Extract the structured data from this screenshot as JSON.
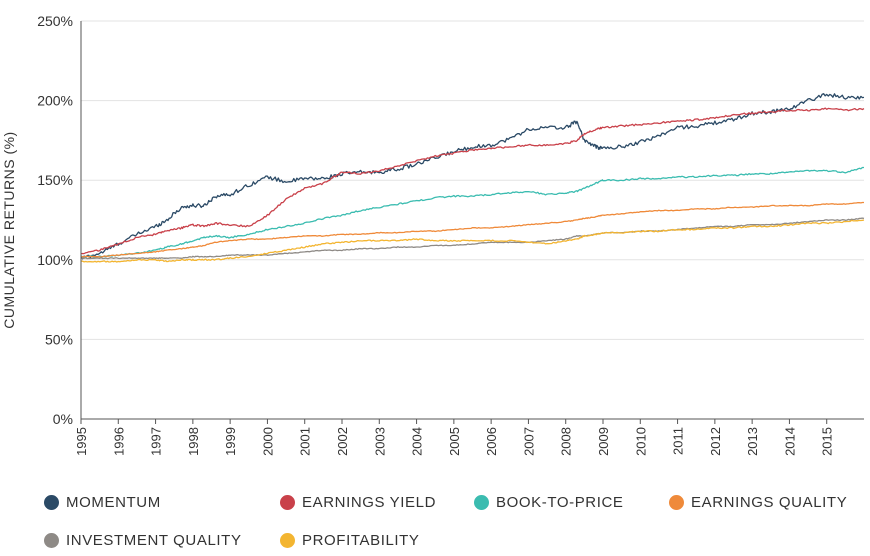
{
  "chart_data": {
    "type": "line",
    "title": "",
    "xlabel": "",
    "ylabel": "CUMULATIVE RETURNS (%)",
    "xlim": [
      1995,
      2016
    ],
    "ylim": [
      0,
      250
    ],
    "y_ticks": [
      0,
      50,
      100,
      150,
      200,
      250
    ],
    "y_tick_labels": [
      "0%",
      "50%",
      "100%",
      "150%",
      "200%",
      "250%"
    ],
    "x_ticks": [
      1995,
      1996,
      1997,
      1998,
      1999,
      2000,
      2001,
      2002,
      2003,
      2004,
      2005,
      2006,
      2007,
      2008,
      2009,
      2010,
      2011,
      2012,
      2013,
      2014,
      2015
    ],
    "x_tick_labels": [
      "1995",
      "1996",
      "1997",
      "1998",
      "1999",
      "2000",
      "2001",
      "2002",
      "2003",
      "2004",
      "2005",
      "2006",
      "2007",
      "2008",
      "2009",
      "2010",
      "2011",
      "2012",
      "2013",
      "2014",
      "2015"
    ],
    "x_tick_rotation": -90,
    "grid": "horizontal",
    "legend_position": "bottom",
    "x": [
      1995.0,
      1995.5,
      1996.0,
      1996.5,
      1997.0,
      1997.3,
      1997.7,
      1998.0,
      1998.3,
      1998.6,
      1999.0,
      1999.5,
      2000.0,
      2000.5,
      2001.0,
      2001.5,
      2002.0,
      2002.5,
      2003.0,
      2003.5,
      2004.0,
      2004.5,
      2005.0,
      2005.5,
      2006.0,
      2006.5,
      2007.0,
      2007.5,
      2008.0,
      2008.3,
      2008.5,
      2008.8,
      2009.0,
      2009.5,
      2010.0,
      2010.5,
      2011.0,
      2011.5,
      2012.0,
      2012.5,
      2013.0,
      2013.5,
      2014.0,
      2014.5,
      2015.0,
      2015.5,
      2016.0
    ],
    "series": [
      {
        "name": "MOMENTUM",
        "color": "#2b4a66",
        "values": [
          101,
          104,
          110,
          116,
          121,
          125,
          133,
          134,
          134,
          140,
          141,
          147,
          152,
          149,
          151,
          151,
          154,
          155,
          155,
          157,
          160,
          164,
          168,
          171,
          172,
          176,
          182,
          183,
          183,
          187,
          175,
          171,
          170,
          171,
          174,
          178,
          183,
          184,
          186,
          188,
          192,
          193,
          195,
          200,
          204,
          202,
          202
        ]
      },
      {
        "name": "EARNINGS YIELD",
        "color": "#c9414a",
        "values": [
          104,
          106,
          110,
          114,
          116,
          118,
          120,
          122,
          121,
          123,
          122,
          121,
          128,
          138,
          145,
          148,
          155,
          154,
          156,
          159,
          162,
          165,
          167,
          169,
          170,
          171,
          172,
          172,
          173,
          175,
          179,
          182,
          183,
          184,
          185,
          186,
          187,
          188,
          189,
          191,
          192,
          193,
          194,
          194,
          195,
          194,
          195
        ]
      },
      {
        "name": "BOOK-TO-PRICE",
        "color": "#3bbcb0",
        "values": [
          102,
          102,
          103,
          104,
          106,
          108,
          110,
          112,
          114,
          115,
          114,
          116,
          119,
          121,
          123,
          126,
          128,
          131,
          133,
          135,
          137,
          139,
          140,
          140,
          141,
          142,
          143,
          141,
          142,
          143,
          145,
          148,
          150,
          150,
          151,
          151,
          152,
          152,
          153,
          153,
          154,
          154,
          155,
          156,
          156,
          155,
          158
        ]
      },
      {
        "name": "EARNINGS QUALITY",
        "color": "#ef8a3a",
        "values": [
          102,
          102,
          103,
          104,
          105,
          106,
          107,
          108,
          109,
          111,
          112,
          113,
          113,
          114,
          115,
          115,
          116,
          116,
          117,
          117,
          118,
          118,
          119,
          120,
          120,
          121,
          122,
          123,
          124,
          125,
          126,
          127,
          128,
          129,
          130,
          131,
          131,
          132,
          132,
          133,
          133,
          134,
          134,
          134,
          135,
          135,
          136
        ]
      },
      {
        "name": "INVESTMENT QUALITY",
        "color": "#8e8a86",
        "values": [
          101,
          101,
          101,
          101,
          101,
          101,
          101,
          102,
          102,
          102,
          103,
          103,
          103,
          104,
          105,
          106,
          106,
          107,
          107,
          108,
          108,
          109,
          109,
          110,
          111,
          111,
          111,
          112,
          113,
          115,
          115,
          116,
          117,
          117,
          118,
          118,
          119,
          120,
          121,
          121,
          122,
          122,
          123,
          124,
          125,
          125,
          126
        ]
      },
      {
        "name": "PROFITABILITY",
        "color": "#f3b531",
        "values": [
          99,
          99,
          99,
          100,
          100,
          99,
          100,
          100,
          100,
          100,
          101,
          102,
          104,
          106,
          108,
          110,
          111,
          112,
          112,
          112,
          113,
          112,
          112,
          112,
          112,
          112,
          111,
          110,
          112,
          113,
          115,
          116,
          117,
          117,
          118,
          118,
          119,
          119,
          120,
          120,
          121,
          121,
          122,
          123,
          123,
          124,
          125
        ]
      }
    ]
  }
}
